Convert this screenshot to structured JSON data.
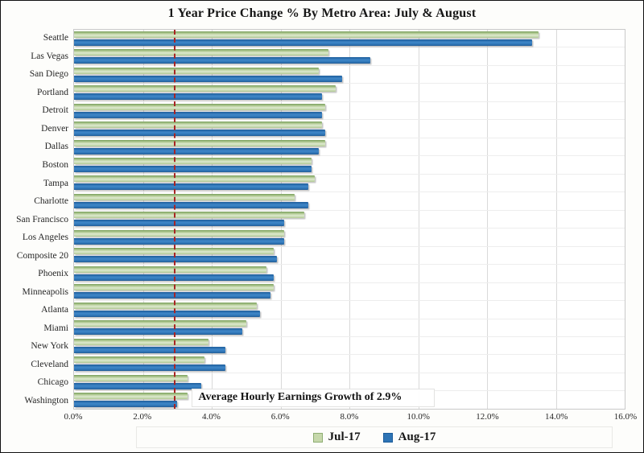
{
  "chart_data": {
    "type": "bar",
    "orientation": "horizontal",
    "title": "1 Year Price Change % By Metro Area: July & August",
    "categories": [
      "Seattle",
      "Las Vegas",
      "San Diego",
      "Portland",
      "Detroit",
      "Denver",
      "Dallas",
      "Boston",
      "Tampa",
      "Charlotte",
      "San Francisco",
      "Los Angeles",
      "Composite 20",
      "Phoenix",
      "Minneapolis",
      "Atlanta",
      "Miami",
      "New York",
      "Cleveland",
      "Chicago",
      "Washington"
    ],
    "series": [
      {
        "name": "Jul-17",
        "color": "#c6d8ab",
        "border_color": "#8fae73",
        "values": [
          13.5,
          7.4,
          7.1,
          7.6,
          7.3,
          7.2,
          7.3,
          6.9,
          7.0,
          6.4,
          6.7,
          6.1,
          5.8,
          5.6,
          5.8,
          5.3,
          5.0,
          3.9,
          3.8,
          3.3,
          3.3
        ]
      },
      {
        "name": "Aug-17",
        "color": "#2e74b5",
        "border_color": "#1d5d9b",
        "values": [
          13.3,
          8.6,
          7.8,
          7.2,
          7.2,
          7.3,
          7.1,
          6.9,
          6.8,
          6.8,
          6.1,
          6.1,
          5.9,
          5.8,
          5.7,
          5.4,
          4.9,
          4.4,
          4.4,
          3.7,
          3.0
        ]
      }
    ],
    "xlim": [
      0,
      16
    ],
    "xticks": [
      "0.0%",
      "2.0%",
      "4.0%",
      "6.0%",
      "8.0%",
      "10.0%",
      "12.0%",
      "14.0%",
      "16.0%"
    ],
    "grid": true,
    "legend_position": "bottom",
    "reference_line": {
      "value": 2.9,
      "label": "Average Hourly Earnings Growth of 2.9%",
      "color": "#a92424",
      "style": "dashed"
    }
  }
}
